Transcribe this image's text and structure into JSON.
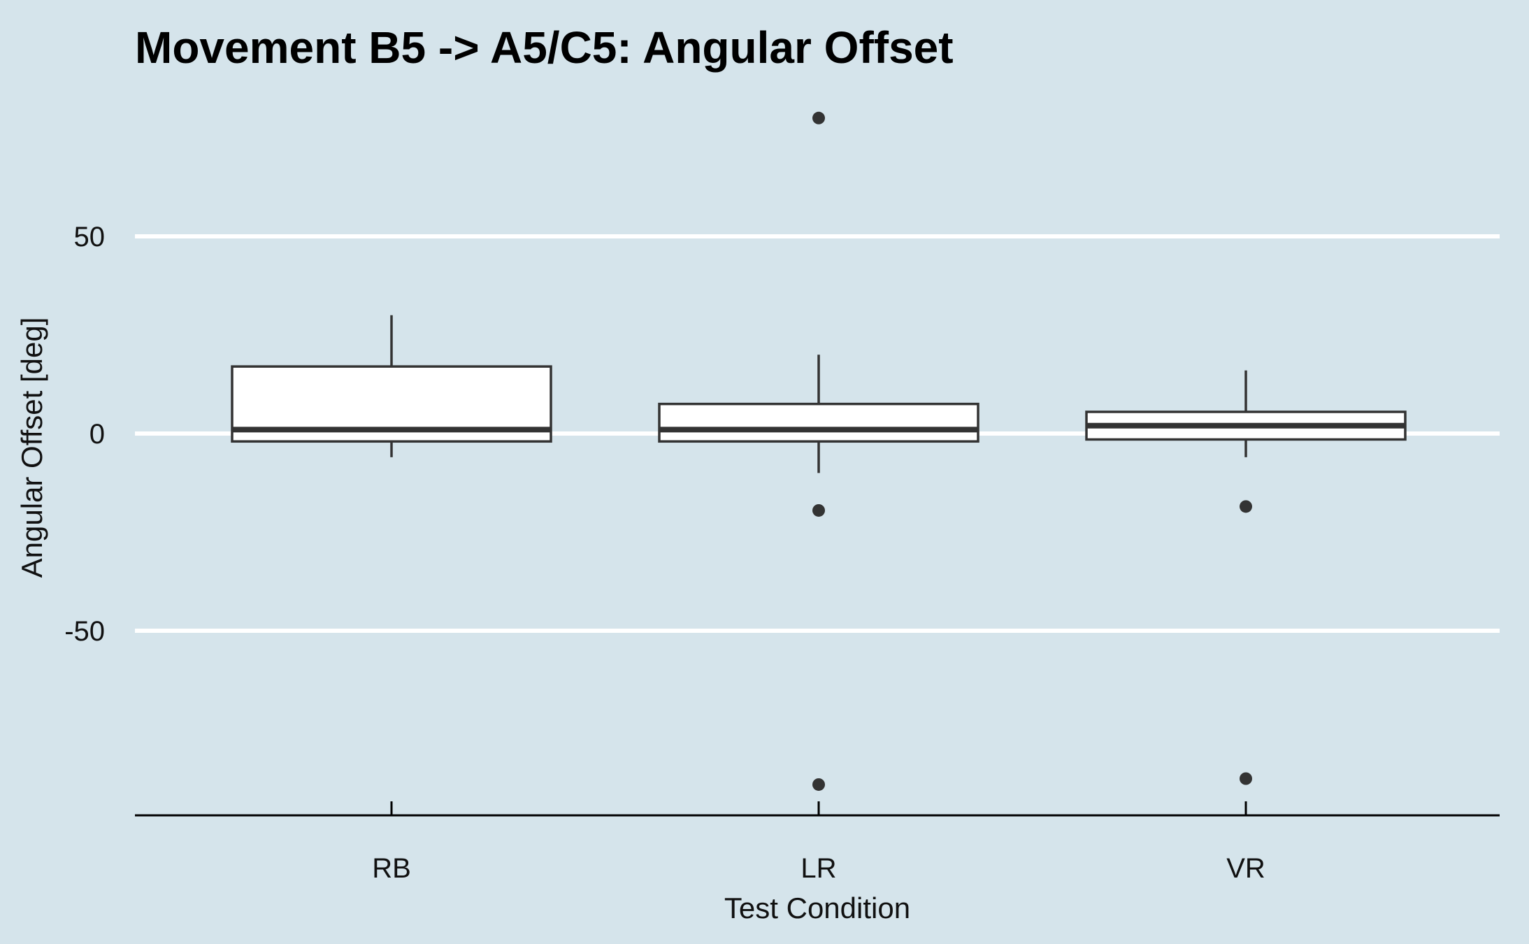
{
  "chart_data": {
    "type": "box",
    "title": "Movement B5 -> A5/C5: Angular Offset",
    "xlabel": "Test Condition",
    "ylabel": "Angular Offset [deg]",
    "categories": [
      "RB",
      "LR",
      "VR"
    ],
    "ylim": [
      -97,
      83
    ],
    "yticks": [
      -50,
      0,
      50
    ],
    "ytick_labels": [
      "-50",
      "0",
      "50"
    ],
    "grid": "horizontal-major",
    "legend": "none",
    "boxes": [
      {
        "category": "RB",
        "whisker_low": -6,
        "q1": -2,
        "median": 1,
        "q3": 17,
        "whisker_high": 30,
        "outliers": []
      },
      {
        "category": "LR",
        "whisker_low": -10,
        "q1": -2,
        "median": 1,
        "q3": 7.5,
        "whisker_high": 20,
        "outliers": [
          80,
          -19.5,
          -89
        ]
      },
      {
        "category": "VR",
        "whisker_low": -6,
        "q1": -1.5,
        "median": 2,
        "q3": 5.5,
        "whisker_high": 16,
        "outliers": [
          -18.5,
          -87.5
        ]
      }
    ],
    "colors": {
      "background": "#d5e4eb",
      "grid": "#ffffff",
      "box_fill": "#ffffff",
      "box_stroke": "#333333",
      "axis": "#000000"
    }
  }
}
